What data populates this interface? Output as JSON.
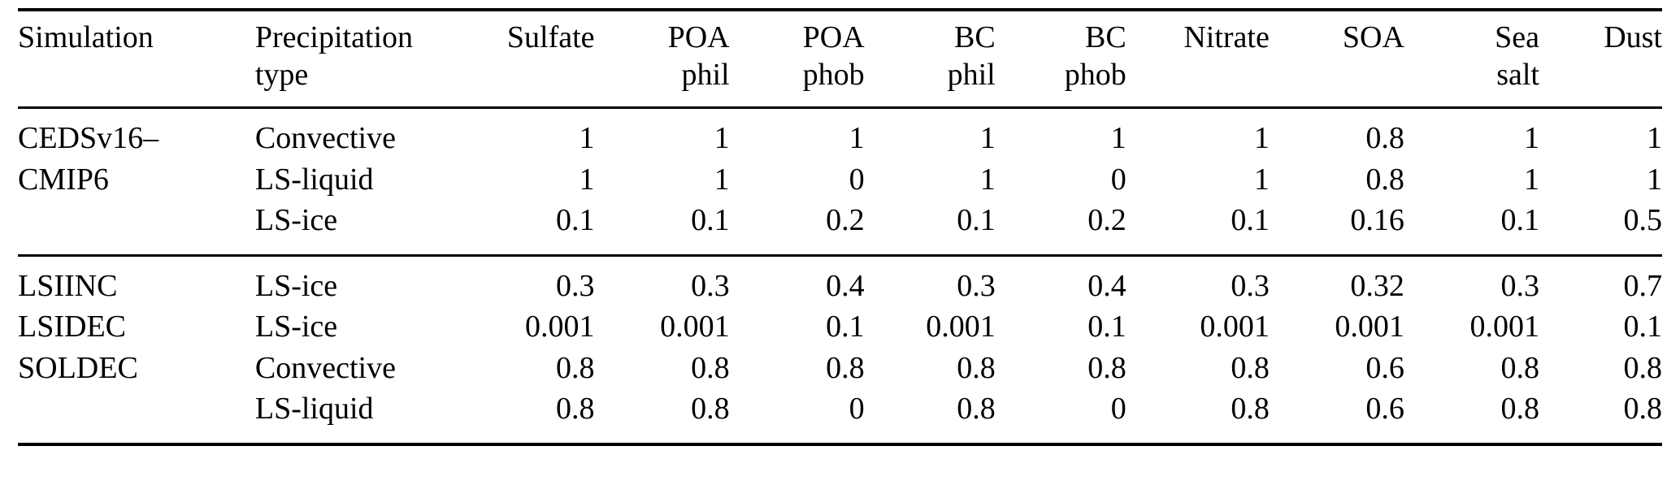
{
  "colors": {
    "background": "#ffffff",
    "text": "#000000",
    "rule": "#000000"
  },
  "table": {
    "columns": [
      {
        "id": "simulation",
        "label": [
          "Simulation"
        ],
        "align": "left"
      },
      {
        "id": "precipitation-type",
        "label": [
          "Precipitation",
          "type"
        ],
        "align": "left"
      },
      {
        "id": "sulfate",
        "label": [
          "Sulfate"
        ],
        "align": "right"
      },
      {
        "id": "poa-phil",
        "label": [
          "POA",
          "phil"
        ],
        "align": "right"
      },
      {
        "id": "poa-phob",
        "label": [
          "POA",
          "phob"
        ],
        "align": "right"
      },
      {
        "id": "bc-phil",
        "label": [
          "BC",
          "phil"
        ],
        "align": "right"
      },
      {
        "id": "bc-phob",
        "label": [
          "BC",
          "phob"
        ],
        "align": "right"
      },
      {
        "id": "nitrate",
        "label": [
          "Nitrate"
        ],
        "align": "right"
      },
      {
        "id": "soa",
        "label": [
          "SOA"
        ],
        "align": "right"
      },
      {
        "id": "sea-salt",
        "label": [
          "Sea",
          "salt"
        ],
        "align": "right"
      },
      {
        "id": "dust",
        "label": [
          "Dust"
        ],
        "align": "right"
      }
    ],
    "groups": [
      {
        "rows": [
          {
            "simulation": "CEDSv16–",
            "precipitation_type": "Convective",
            "values": [
              "1",
              "1",
              "1",
              "1",
              "1",
              "1",
              "0.8",
              "1",
              "1"
            ]
          },
          {
            "simulation": "CMIP6",
            "precipitation_type": "LS-liquid",
            "values": [
              "1",
              "1",
              "0",
              "1",
              "0",
              "1",
              "0.8",
              "1",
              "1"
            ]
          },
          {
            "simulation": "",
            "precipitation_type": "LS-ice",
            "values": [
              "0.1",
              "0.1",
              "0.2",
              "0.1",
              "0.2",
              "0.1",
              "0.16",
              "0.1",
              "0.5"
            ]
          }
        ]
      },
      {
        "rows": [
          {
            "simulation": "LSIINC",
            "precipitation_type": "LS-ice",
            "values": [
              "0.3",
              "0.3",
              "0.4",
              "0.3",
              "0.4",
              "0.3",
              "0.32",
              "0.3",
              "0.7"
            ]
          },
          {
            "simulation": "LSIDEC",
            "precipitation_type": "LS-ice",
            "values": [
              "0.001",
              "0.001",
              "0.1",
              "0.001",
              "0.1",
              "0.001",
              "0.001",
              "0.001",
              "0.1"
            ]
          },
          {
            "simulation": "SOLDEC",
            "precipitation_type": "Convective",
            "values": [
              "0.8",
              "0.8",
              "0.8",
              "0.8",
              "0.8",
              "0.8",
              "0.6",
              "0.8",
              "0.8"
            ]
          },
          {
            "simulation": "",
            "precipitation_type": "LS-liquid",
            "values": [
              "0.8",
              "0.8",
              "0",
              "0.8",
              "0",
              "0.8",
              "0.6",
              "0.8",
              "0.8"
            ]
          }
        ]
      }
    ]
  }
}
